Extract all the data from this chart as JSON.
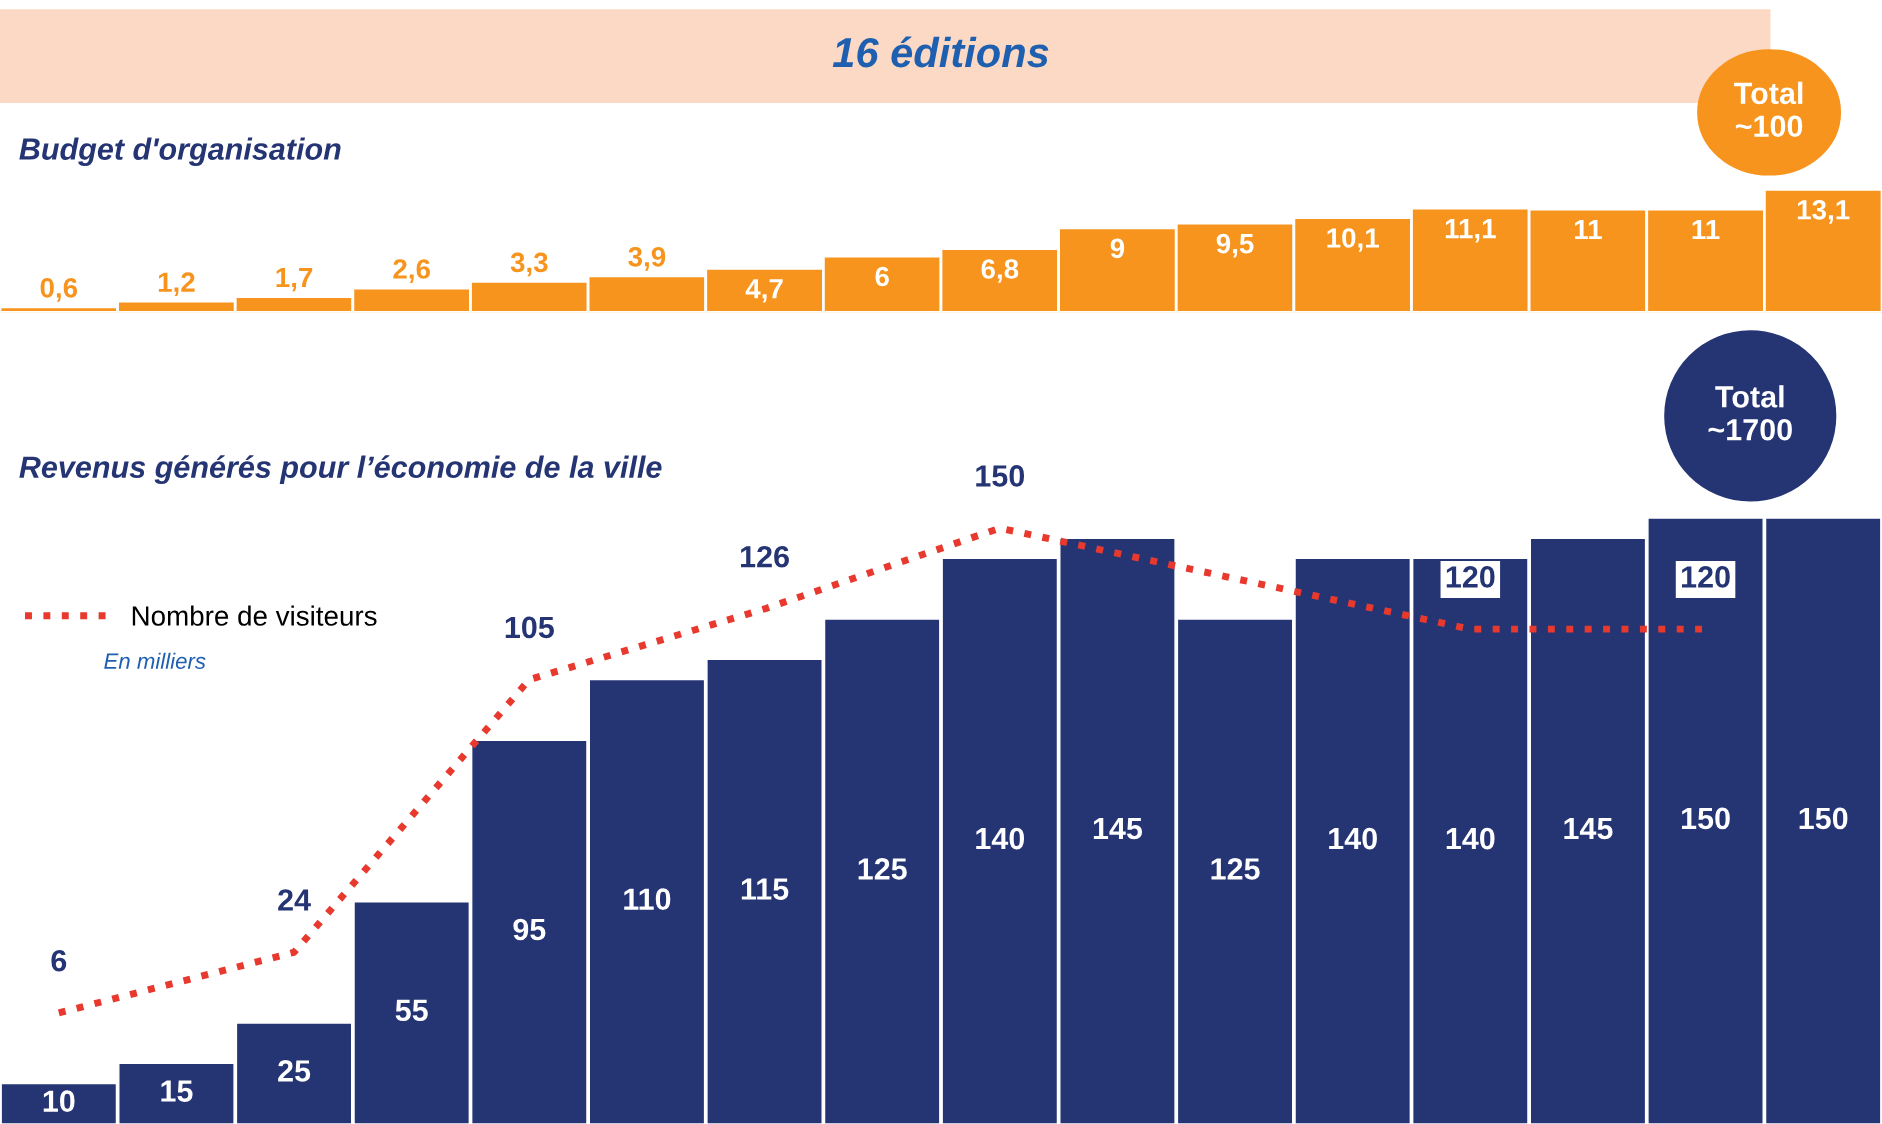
{
  "chart_data": [
    {
      "type": "bar",
      "title": "Budget d'organisation",
      "annotations": [
        "16 éditions",
        "Total ~100"
      ],
      "categories": [
        null,
        null,
        null,
        null,
        null,
        null,
        null,
        null,
        null,
        null,
        null,
        null,
        null,
        null,
        null,
        null
      ],
      "values": [
        0.6,
        1.2,
        1.7,
        2.6,
        3.3,
        3.9,
        4.7,
        6,
        6.8,
        9,
        9.5,
        10.1,
        11.1,
        11,
        11,
        13.1
      ],
      "value_labels": [
        "0,6",
        "1,2",
        "1,7",
        "2,6",
        "3,3",
        "3,9",
        "4,7",
        "6",
        "6,8",
        "9",
        "9,5",
        "10,1",
        "11,1",
        "11",
        "11",
        "13,1"
      ],
      "color": "#f7941d"
    },
    {
      "type": "bar",
      "title": "Revenus générés pour l’économie de la ville",
      "annotations": [
        "Total ~1700",
        "En milliers"
      ],
      "categories": [
        null,
        null,
        null,
        null,
        null,
        null,
        null,
        null,
        null,
        null,
        null,
        null,
        null,
        null,
        null,
        null
      ],
      "series": [
        {
          "type": "bar",
          "color": "#253574",
          "values": [
            10,
            15,
            25,
            55,
            95,
            110,
            115,
            125,
            140,
            145,
            125,
            140,
            140,
            145,
            150,
            150
          ]
        },
        {
          "type": "line",
          "axis": "y2",
          "name": "Nombre de visiteurs",
          "color": "#e8392e",
          "line_style": "dotted",
          "values": [
            6,
            null,
            24,
            null,
            105,
            null,
            126,
            null,
            150,
            null,
            null,
            null,
            120,
            null,
            120,
            null
          ]
        }
      ],
      "data_labels": true,
      "legend": "left"
    }
  ]
}
